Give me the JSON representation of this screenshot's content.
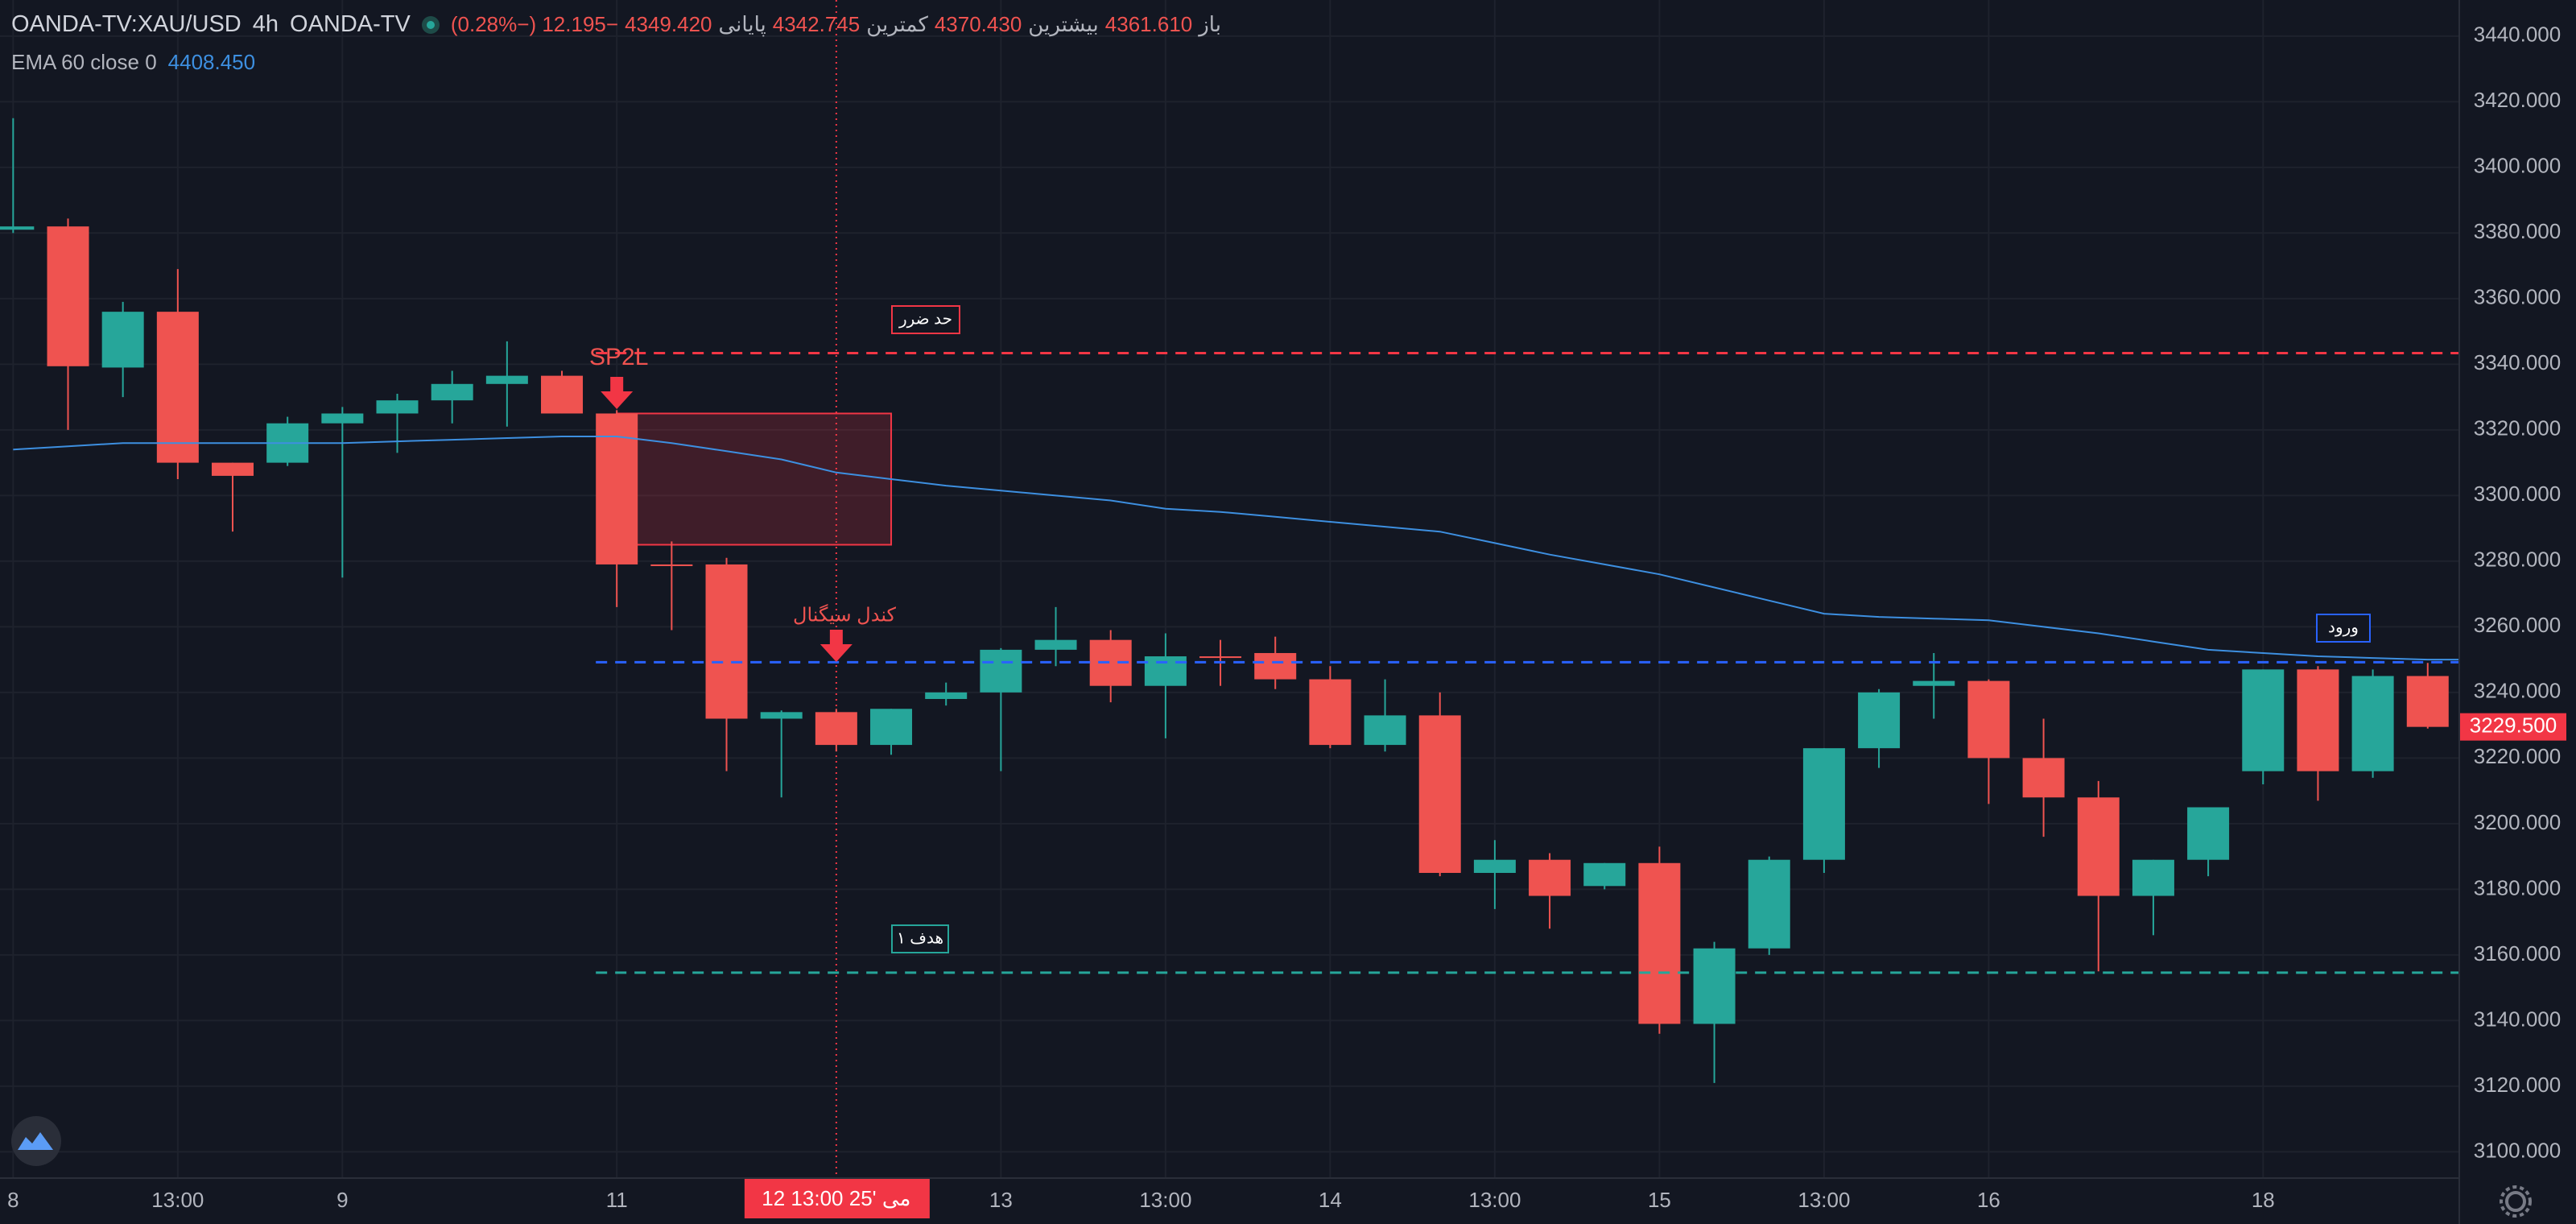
{
  "chart_data": {
    "type": "candlestick",
    "symbol": "OANDA-TV:XAU/USD",
    "interval": "4h",
    "source": "OANDA-TV",
    "ohlc_header": [
      "باز",
      "4361.610",
      "بیشترین",
      "4370.430",
      "کمترین",
      "4342.745",
      "پایانی",
      "4349.420",
      "−12.195 (−0.28%)"
    ],
    "up_color": "#26a69a",
    "down_color": "#ef5350",
    "categories": [
      "8",
      null,
      null,
      "13:00",
      null,
      null,
      "9",
      null,
      null,
      null,
      null,
      "11",
      null,
      null,
      null,
      null,
      null,
      null,
      "13",
      null,
      null,
      "13:00",
      null,
      null,
      "14",
      null,
      null,
      "13:00",
      null,
      null,
      "15",
      null,
      null,
      "13:00",
      null,
      null,
      "16",
      null,
      null,
      null,
      null,
      "18",
      null,
      null,
      null
    ],
    "open": [
      3381,
      3382,
      3339,
      3356,
      3310,
      3310,
      3322,
      3325,
      3329,
      3334,
      3336.5,
      3325,
      3279,
      3279,
      3232,
      3234,
      3224,
      3238,
      3240,
      3253,
      3256,
      3242,
      3251,
      3252,
      3244,
      3224,
      3233,
      3185,
      3189,
      3181,
      3188,
      3139,
      3162,
      3189,
      3223,
      3242,
      3243.5,
      3220,
      3208,
      3178,
      3189,
      3216,
      3247,
      3216,
      3245
    ],
    "high": [
      3415,
      3384.4,
      3359,
      3369,
      3310,
      3324,
      3327,
      3331,
      3338,
      3347,
      3338,
      3326,
      3286,
      3281,
      3234.5,
      3235,
      3235,
      3243,
      3253.5,
      3266,
      3259,
      3258,
      3256,
      3257,
      3248,
      3244,
      3240,
      3195,
      3191,
      3188,
      3193,
      3164,
      3190,
      3223,
      3241,
      3252,
      3244,
      3232,
      3213,
      3189,
      3205,
      3247,
      3248,
      3247,
      3249
    ],
    "low": [
      3380,
      3320,
      3330,
      3305,
      3289,
      3309,
      3275,
      3313,
      3322,
      3321,
      3325,
      3266,
      3259,
      3216,
      3208,
      3222,
      3221,
      3236,
      3216,
      3248,
      3237,
      3226,
      3242,
      3241,
      3223,
      3222,
      3184,
      3174,
      3168,
      3180,
      3136,
      3121,
      3160,
      3185,
      3217,
      3232,
      3206,
      3196,
      3155,
      3166,
      3184,
      3212,
      3207,
      3214,
      3229
    ],
    "close": [
      3382,
      3339.4,
      3356,
      3310,
      3306,
      3322,
      3325,
      3329,
      3334,
      3336.5,
      3325,
      3279,
      3278.5,
      3232,
      3234,
      3224,
      3235,
      3240,
      3253,
      3256,
      3242,
      3251,
      3250.5,
      3244,
      3224,
      3233,
      3185,
      3189,
      3178,
      3188,
      3139,
      3162,
      3189,
      3223,
      3240,
      3243.5,
      3220,
      3208,
      3178,
      3189,
      3205,
      3247,
      3216,
      3245,
      3229.5
    ],
    "ema": {
      "name": "EMA 60 close 0",
      "last_label": "4408.450",
      "color": "#3d8fe0",
      "values": [
        3314,
        3315,
        3316,
        3316,
        3316,
        3316,
        3316,
        3316.5,
        3317,
        3317.5,
        3318,
        3318,
        3316,
        3313.5,
        3311,
        3307,
        3305,
        3303,
        3301.5,
        3300,
        3298.5,
        3296,
        3295,
        3293.5,
        3292,
        3290.5,
        3289,
        3285.5,
        3282,
        3279,
        3276,
        3272,
        3268,
        3264,
        3263,
        3262.5,
        3262,
        3260,
        3258,
        3255.5,
        3253,
        3252,
        3251,
        3250.5,
        3250
      ]
    },
    "levels": [
      {
        "label": "حد ضرر",
        "value": 3343.4,
        "color": "#f23645"
      },
      {
        "label": "ورود",
        "value": 3249.2,
        "color": "#2962ff"
      },
      {
        "label": "هدف ۱",
        "value": 3154.6,
        "color": "#26a69a"
      }
    ],
    "zone": {
      "top": 3325,
      "bottom": 3285,
      "color": "#f23645"
    },
    "annotations": [
      "SP2L",
      "کندل سیگنال"
    ],
    "crosshair_label": "12 مى '25 13:00",
    "last_price": {
      "value": 3229.5,
      "label": "3229.500"
    },
    "ylim": [
      3092,
      3451
    ],
    "yticks": [
      {
        "value": 3100,
        "label": "3100.000"
      },
      {
        "value": 3120,
        "label": "3120.000"
      },
      {
        "value": 3140,
        "label": "3140.000"
      },
      {
        "value": 3160,
        "label": "3160.000"
      },
      {
        "value": 3180,
        "label": "3180.000"
      },
      {
        "value": 3200,
        "label": "3200.000"
      },
      {
        "value": 3220,
        "label": "3220.000"
      },
      {
        "value": 3240,
        "label": "3240.000"
      },
      {
        "value": 3260,
        "label": "3260.000"
      },
      {
        "value": 3280,
        "label": "3280.000"
      },
      {
        "value": 3300,
        "label": "3300.000"
      },
      {
        "value": 3320,
        "label": "3320.000"
      },
      {
        "value": 3340,
        "label": "3340.000"
      },
      {
        "value": 3360,
        "label": "3360.000"
      },
      {
        "value": 3380,
        "label": "3380.000"
      },
      {
        "value": 3400,
        "label": "3400.000"
      },
      {
        "value": 3420,
        "label": "3420.000"
      },
      {
        "value": 3440,
        "label": "3440.000"
      }
    ],
    "grid": true
  }
}
